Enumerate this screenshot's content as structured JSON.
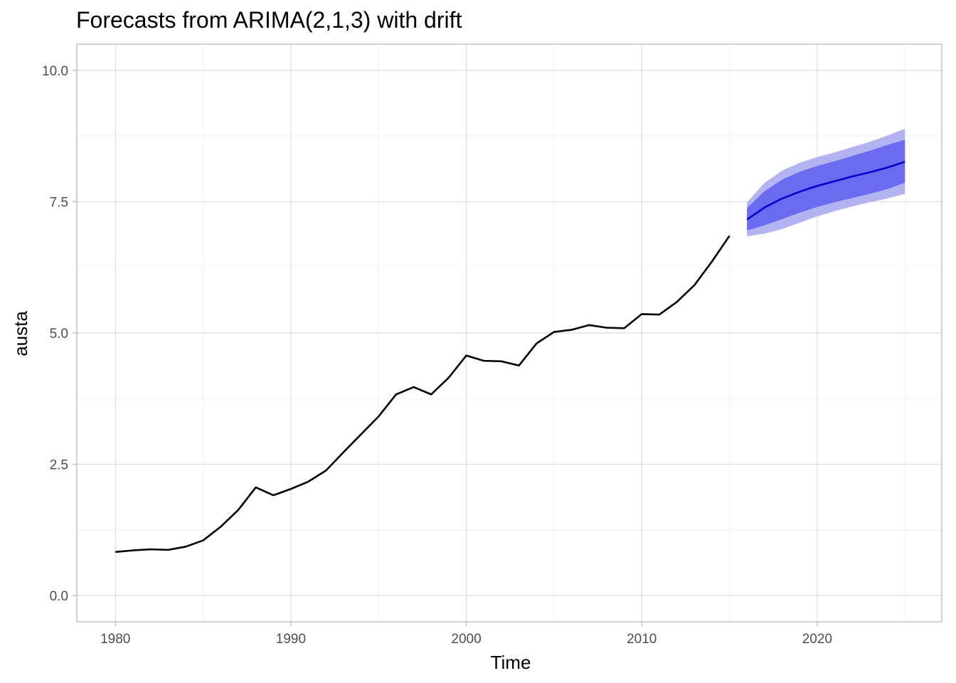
{
  "chart_data": {
    "type": "line",
    "title": "Forecasts from ARIMA(2,1,3) with drift",
    "xlabel": "Time",
    "ylabel": "austa",
    "xlim": [
      1977.8,
      2027.1
    ],
    "ylim": [
      -0.5,
      10.5
    ],
    "x_ticks": [
      1980,
      1990,
      2000,
      2010,
      2020
    ],
    "x_tick_labels": [
      "1980",
      "1990",
      "2000",
      "2010",
      "2020"
    ],
    "y_ticks": [
      0,
      2.5,
      5,
      7.5,
      10
    ],
    "y_tick_labels": [
      "0.0",
      "2.5",
      "5.0",
      "7.5",
      "10.0"
    ],
    "grid": true,
    "legend": "none",
    "series": [
      {
        "color": "#000000",
        "x": [
          1980,
          1981,
          1982,
          1983,
          1984,
          1985,
          1986,
          1987,
          1988,
          1989,
          1990,
          1991,
          1992,
          1993,
          1994,
          1995,
          1996,
          1997,
          1998,
          1999,
          2000,
          2001,
          2002,
          2003,
          2004,
          2005,
          2006,
          2007,
          2008,
          2009,
          2010,
          2011,
          2012,
          2013,
          2014,
          2015
        ],
        "values": [
          0.83,
          0.86,
          0.88,
          0.87,
          0.93,
          1.05,
          1.31,
          1.63,
          2.06,
          1.91,
          2.03,
          2.17,
          2.38,
          2.73,
          3.07,
          3.41,
          3.83,
          3.97,
          3.83,
          4.15,
          4.57,
          4.47,
          4.46,
          4.38,
          4.8,
          5.02,
          5.06,
          5.15,
          5.1,
          5.09,
          5.36,
          5.35,
          5.59,
          5.91,
          6.36,
          6.85
        ]
      },
      {
        "color": "#0000cc",
        "x": [
          2016,
          2017,
          2018,
          2019,
          2020,
          2021,
          2022,
          2023,
          2024,
          2025
        ],
        "values": [
          7.16,
          7.39,
          7.56,
          7.69,
          7.8,
          7.89,
          7.98,
          8.06,
          8.15,
          8.26
        ],
        "lower_80": [
          6.95,
          7.05,
          7.17,
          7.29,
          7.4,
          7.49,
          7.57,
          7.65,
          7.74,
          7.86
        ],
        "upper_80": [
          7.38,
          7.7,
          7.92,
          8.07,
          8.18,
          8.27,
          8.37,
          8.47,
          8.58,
          8.68
        ],
        "lower_95": [
          6.84,
          6.89,
          6.98,
          7.1,
          7.22,
          7.32,
          7.41,
          7.49,
          7.56,
          7.65
        ],
        "upper_95": [
          7.49,
          7.86,
          8.09,
          8.24,
          8.35,
          8.44,
          8.54,
          8.64,
          8.76,
          8.89
        ]
      }
    ],
    "band_colors": {
      "band_95": "#b3b3f2",
      "band_80": "#6b6bef"
    }
  }
}
